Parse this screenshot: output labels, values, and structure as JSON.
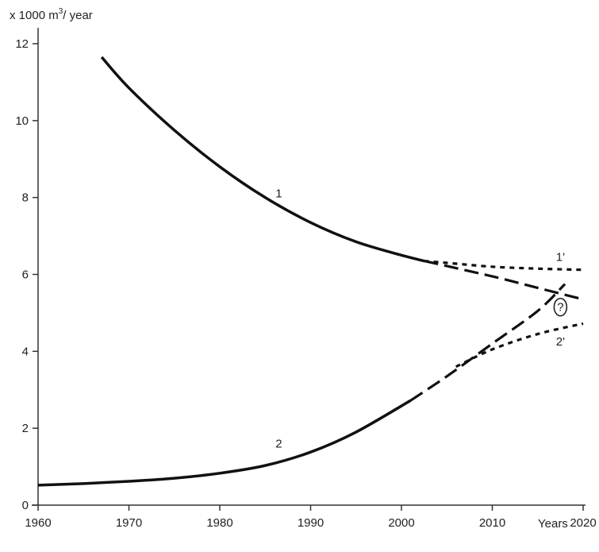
{
  "chart_data": {
    "type": "line",
    "ylabel_base": "x 1000 m",
    "ylabel_sup": "3",
    "ylabel_tail": "/ year",
    "xlabel": "Years",
    "xlim": [
      1960,
      2020
    ],
    "ylim": [
      0,
      12
    ],
    "xticks": [
      1960,
      1970,
      1980,
      1990,
      2000,
      2010,
      2020
    ],
    "yticks": [
      0,
      2,
      4,
      6,
      8,
      10,
      12
    ],
    "grid": false,
    "question_mark": {
      "text": "?",
      "x": 2017.5,
      "y": 5.15
    },
    "series": [
      {
        "name": "1",
        "style": "solid",
        "label_pos": {
          "x": 1986.5,
          "y": 8.0
        },
        "x": [
          1967,
          1970,
          1975,
          1980,
          1985,
          1990,
          1995,
          2000,
          2002.5
        ],
        "y": [
          11.65,
          10.85,
          9.75,
          8.8,
          8.0,
          7.35,
          6.85,
          6.5,
          6.35
        ]
      },
      {
        "name": "",
        "style": "dashed",
        "x": [
          2002.5,
          2010,
          2015,
          2020
        ],
        "y": [
          6.35,
          5.95,
          5.65,
          5.35
        ]
      },
      {
        "name": "1'",
        "style": "dotted",
        "label_pos": {
          "x": 2017.5,
          "y": 6.35
        },
        "x": [
          2002.5,
          2005,
          2010,
          2015,
          2020
        ],
        "y": [
          6.35,
          6.3,
          6.2,
          6.15,
          6.12
        ]
      },
      {
        "name": "2",
        "style": "solid",
        "label_pos": {
          "x": 1986.5,
          "y": 1.5
        },
        "x": [
          1960,
          1965,
          1970,
          1975,
          1980,
          1985,
          1990,
          1995,
          2001
        ],
        "y": [
          0.52,
          0.56,
          0.62,
          0.7,
          0.83,
          1.03,
          1.38,
          1.9,
          2.72
        ]
      },
      {
        "name": "",
        "style": "dashed",
        "x": [
          2001,
          2005,
          2010,
          2015,
          2018
        ],
        "y": [
          2.72,
          3.35,
          4.2,
          5.05,
          5.75
        ]
      },
      {
        "name": "2'",
        "style": "dotted",
        "label_pos": {
          "x": 2017.5,
          "y": 4.15
        },
        "x": [
          2006,
          2010,
          2015,
          2020
        ],
        "y": [
          3.6,
          4.05,
          4.45,
          4.72
        ]
      }
    ]
  }
}
